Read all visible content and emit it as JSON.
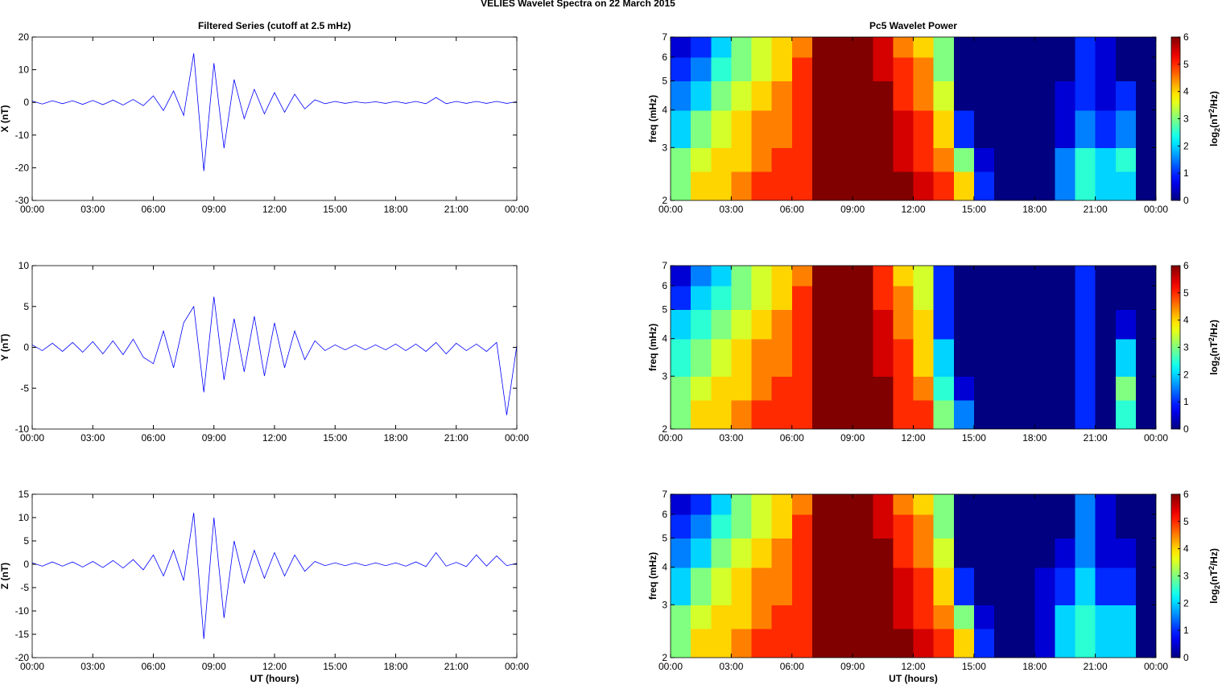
{
  "title": "VELIES Wavelet Spectra on 22 March     2015",
  "chart_data": [
    {
      "type": "line",
      "title": "Filtered Series (cutoff at 2.5 mHz)",
      "ylabel": "X (nT)",
      "color": "#0000ff",
      "grid": false,
      "x": [
        0,
        0.5,
        1,
        1.5,
        2,
        2.5,
        3,
        3.5,
        4,
        4.5,
        5,
        5.5,
        6,
        6.5,
        7,
        7.5,
        8,
        8.5,
        9,
        9.5,
        10,
        10.5,
        11,
        11.5,
        12,
        12.5,
        13,
        13.5,
        14,
        14.5,
        15,
        15.5,
        16,
        16.5,
        17,
        17.5,
        18,
        18.5,
        19,
        19.5,
        20,
        20.5,
        21,
        21.5,
        22,
        22.5,
        23,
        23.5,
        24
      ],
      "values": [
        0.4,
        -0.5,
        0.5,
        -0.4,
        0.5,
        -0.6,
        0.6,
        -0.7,
        0.7,
        -0.8,
        0.9,
        -1,
        2,
        -2.5,
        3.5,
        -4,
        15,
        -21,
        12,
        -14,
        7,
        -5,
        4,
        -3.5,
        3,
        -3,
        2.5,
        -2,
        0.8,
        -0.4,
        0.3,
        -0.3,
        0.2,
        -0.2,
        0.2,
        -0.3,
        0.3,
        -0.3,
        0.3,
        -0.4,
        1.5,
        -0.4,
        0.3,
        -0.3,
        0.3,
        -0.3,
        0.3,
        -0.3,
        0.2
      ],
      "xlim": [
        0,
        24
      ],
      "xticks": [
        {
          "value": 0,
          "label": "00:00"
        },
        {
          "value": 3,
          "label": "03:00"
        },
        {
          "value": 6,
          "label": "06:00"
        },
        {
          "value": 9,
          "label": "09:00"
        },
        {
          "value": 12,
          "label": "12:00"
        },
        {
          "value": 15,
          "label": "15:00"
        },
        {
          "value": 18,
          "label": "18:00"
        },
        {
          "value": 21,
          "label": "21:00"
        },
        {
          "value": 24,
          "label": "00:00"
        }
      ],
      "ylim": [
        -30,
        20
      ],
      "yticks": [
        -30,
        -20,
        -10,
        0,
        10,
        20
      ]
    },
    {
      "type": "line",
      "ylabel": "Y (nT)",
      "color": "#0000ff",
      "grid": false,
      "x": [
        0,
        0.5,
        1,
        1.5,
        2,
        2.5,
        3,
        3.5,
        4,
        4.5,
        5,
        5.5,
        6,
        6.5,
        7,
        7.5,
        8,
        8.5,
        9,
        9.5,
        10,
        10.5,
        11,
        11.5,
        12,
        12.5,
        13,
        13.5,
        14,
        14.5,
        15,
        15.5,
        16,
        16.5,
        17,
        17.5,
        18,
        18.5,
        19,
        19.5,
        20,
        20.5,
        21,
        21.5,
        22,
        22.5,
        23,
        23.5,
        24
      ],
      "values": [
        0.3,
        -0.4,
        0.5,
        -0.5,
        0.6,
        -0.6,
        0.7,
        -0.8,
        0.8,
        -0.9,
        1,
        -1.2,
        -2,
        2,
        -2.5,
        3,
        5,
        -5.5,
        6.2,
        -4,
        3.5,
        -3,
        3.8,
        -3.5,
        3,
        -2.5,
        2,
        -1.5,
        0.8,
        -0.4,
        0.3,
        -0.3,
        0.3,
        -0.3,
        0.3,
        -0.3,
        0.4,
        -0.4,
        0.4,
        -0.5,
        0.6,
        -0.8,
        0.5,
        -0.4,
        0.4,
        -0.5,
        0.6,
        -8.3,
        0.2
      ],
      "xlim": [
        0,
        24
      ],
      "xticks": [
        {
          "value": 0,
          "label": "00:00"
        },
        {
          "value": 3,
          "label": "03:00"
        },
        {
          "value": 6,
          "label": "06:00"
        },
        {
          "value": 9,
          "label": "09:00"
        },
        {
          "value": 12,
          "label": "12:00"
        },
        {
          "value": 15,
          "label": "15:00"
        },
        {
          "value": 18,
          "label": "18:00"
        },
        {
          "value": 21,
          "label": "21:00"
        },
        {
          "value": 24,
          "label": "00:00"
        }
      ],
      "ylim": [
        -10,
        10
      ],
      "yticks": [
        -10,
        -5,
        0,
        5,
        10
      ]
    },
    {
      "type": "line",
      "ylabel": "Z (nT)",
      "xlabel": "UT (hours)",
      "color": "#0000ff",
      "grid": false,
      "x": [
        0,
        0.5,
        1,
        1.5,
        2,
        2.5,
        3,
        3.5,
        4,
        4.5,
        5,
        5.5,
        6,
        6.5,
        7,
        7.5,
        8,
        8.5,
        9,
        9.5,
        10,
        10.5,
        11,
        11.5,
        12,
        12.5,
        13,
        13.5,
        14,
        14.5,
        15,
        15.5,
        16,
        16.5,
        17,
        17.5,
        18,
        18.5,
        19,
        19.5,
        20,
        20.5,
        21,
        21.5,
        22,
        22.5,
        23,
        23.5,
        24
      ],
      "values": [
        0.3,
        -0.4,
        0.5,
        -0.4,
        0.5,
        -0.6,
        0.6,
        -0.7,
        0.8,
        -0.8,
        1,
        -1.2,
        2,
        -2.5,
        3,
        -3.5,
        11,
        -16,
        10,
        -11.5,
        5,
        -4,
        3,
        -3,
        2.5,
        -2.5,
        2,
        -1.5,
        0.6,
        -0.3,
        0.3,
        -0.3,
        0.3,
        -0.3,
        0.3,
        -0.3,
        0.3,
        -0.4,
        0.5,
        -0.5,
        2.5,
        -0.4,
        0.4,
        -0.5,
        2,
        -0.4,
        1.8,
        -0.3,
        0.2
      ],
      "xlim": [
        0,
        24
      ],
      "xticks": [
        {
          "value": 0,
          "label": "00:00"
        },
        {
          "value": 3,
          "label": "03:00"
        },
        {
          "value": 6,
          "label": "06:00"
        },
        {
          "value": 9,
          "label": "09:00"
        },
        {
          "value": 12,
          "label": "12:00"
        },
        {
          "value": 15,
          "label": "15:00"
        },
        {
          "value": 18,
          "label": "18:00"
        },
        {
          "value": 21,
          "label": "21:00"
        },
        {
          "value": 24,
          "label": "00:00"
        }
      ],
      "ylim": [
        -20,
        15
      ],
      "yticks": [
        -20,
        -15,
        -10,
        -5,
        0,
        5,
        10,
        15
      ]
    },
    {
      "type": "heatmap",
      "title": "Pc5 Wavelet Power",
      "ylabel": "freq (mHz)",
      "colormap": "jet",
      "ylog": true,
      "x_edges": [
        0,
        1,
        2,
        3,
        4,
        5,
        6,
        7,
        8,
        9,
        10,
        11,
        12,
        13,
        14,
        15,
        16,
        17,
        18,
        19,
        20,
        21,
        22,
        23,
        24
      ],
      "y_edges": [
        2,
        2.5,
        3,
        4,
        5,
        6,
        7
      ],
      "z": [
        [
          3,
          4,
          4,
          4.5,
          5,
          5,
          5,
          6,
          6,
          6,
          6,
          6,
          5.5,
          5,
          4,
          1,
          0,
          0,
          0,
          1.5,
          2.5,
          2,
          2,
          0
        ],
        [
          3,
          3.5,
          4,
          4,
          4.5,
          5,
          5,
          6,
          6,
          6,
          6,
          5.5,
          5,
          4.5,
          3,
          0.5,
          0,
          0,
          0,
          1.5,
          2.5,
          2,
          2.5,
          0
        ],
        [
          2,
          3,
          3.5,
          4,
          4.5,
          4.5,
          5,
          6,
          6,
          6,
          6,
          5.5,
          5,
          4,
          1,
          0,
          0,
          0,
          0,
          0.5,
          1.5,
          1,
          1.5,
          0
        ],
        [
          1.5,
          2,
          3,
          3.5,
          4,
          4.5,
          5,
          6,
          6,
          6,
          6,
          5,
          4.5,
          3.5,
          0,
          0,
          0,
          0,
          0,
          0.5,
          1,
          0.5,
          1,
          0
        ],
        [
          1,
          1.5,
          2.5,
          3,
          3.5,
          4,
          5,
          6,
          6,
          6,
          5.5,
          5,
          4.5,
          3,
          0,
          0,
          0,
          0,
          0,
          0,
          1,
          0.5,
          0,
          0
        ],
        [
          0.5,
          1,
          2,
          3,
          3.5,
          4,
          4.5,
          6,
          6,
          6,
          5.5,
          4.5,
          4,
          3,
          0,
          0,
          0,
          0,
          0,
          0,
          1,
          0.5,
          0,
          0
        ]
      ],
      "xlim": [
        0,
        24
      ],
      "xticks": [
        {
          "value": 0,
          "label": "00:00"
        },
        {
          "value": 3,
          "label": "03:00"
        },
        {
          "value": 6,
          "label": "06:00"
        },
        {
          "value": 9,
          "label": "09:00"
        },
        {
          "value": 12,
          "label": "12:00"
        },
        {
          "value": 15,
          "label": "15:00"
        },
        {
          "value": 18,
          "label": "18:00"
        },
        {
          "value": 21,
          "label": "21:00"
        },
        {
          "value": 24,
          "label": "00:00"
        }
      ],
      "ylim": [
        2,
        7
      ],
      "yticks": [
        2,
        3,
        4,
        5,
        6,
        7
      ],
      "zlim": [
        0,
        6
      ],
      "zticks": [
        0,
        1,
        2,
        3,
        4,
        5,
        6
      ],
      "colorbar_label": [
        "log",
        "2",
        "(nT",
        "2",
        "/Hz)"
      ]
    },
    {
      "type": "heatmap",
      "ylabel": "freq (mHz)",
      "colormap": "jet",
      "ylog": true,
      "x_edges": [
        0,
        1,
        2,
        3,
        4,
        5,
        6,
        7,
        8,
        9,
        10,
        11,
        12,
        13,
        14,
        15,
        16,
        17,
        18,
        19,
        20,
        21,
        22,
        23,
        24
      ],
      "y_edges": [
        2,
        2.5,
        3,
        4,
        5,
        6,
        7
      ],
      "z": [
        [
          3,
          4,
          4,
          4.5,
          5,
          5,
          5,
          6,
          6,
          6,
          6,
          5,
          5,
          3,
          1.5,
          0,
          0,
          0,
          0,
          0,
          1,
          0,
          2.5,
          0
        ],
        [
          3,
          3.5,
          4,
          4,
          4.5,
          5,
          5,
          6,
          6,
          6,
          6,
          5,
          4.5,
          2.5,
          0.5,
          0,
          0,
          0,
          0,
          0,
          1,
          0,
          3,
          0
        ],
        [
          2.5,
          3,
          3.5,
          4,
          4.5,
          4.5,
          5,
          6,
          6,
          6,
          5.5,
          5,
          4,
          2,
          0,
          0,
          0,
          0,
          0,
          0,
          1,
          0,
          2,
          0
        ],
        [
          2,
          2.5,
          3,
          3.5,
          4,
          4.5,
          5,
          6,
          6,
          6,
          5.5,
          4.5,
          4,
          1,
          0,
          0,
          0,
          0,
          0,
          0,
          1,
          0,
          0.5,
          0
        ],
        [
          1,
          2,
          2.5,
          3,
          3.5,
          4,
          5,
          6,
          6,
          6,
          5,
          4.5,
          3.5,
          1,
          0,
          0,
          0,
          0,
          0,
          0,
          1,
          0,
          0,
          0
        ],
        [
          0.5,
          1.5,
          2,
          3,
          3.5,
          4,
          4.5,
          6,
          6,
          6,
          5,
          4,
          3.5,
          1,
          0,
          0,
          0,
          0,
          0,
          0,
          1,
          0,
          0,
          0
        ]
      ],
      "xlim": [
        0,
        24
      ],
      "xticks": [
        {
          "value": 0,
          "label": "00:00"
        },
        {
          "value": 3,
          "label": "03:00"
        },
        {
          "value": 6,
          "label": "06:00"
        },
        {
          "value": 9,
          "label": "09:00"
        },
        {
          "value": 12,
          "label": "12:00"
        },
        {
          "value": 15,
          "label": "15:00"
        },
        {
          "value": 18,
          "label": "18:00"
        },
        {
          "value": 21,
          "label": "21:00"
        },
        {
          "value": 24,
          "label": "00:00"
        }
      ],
      "ylim": [
        2,
        7
      ],
      "yticks": [
        2,
        3,
        4,
        5,
        6,
        7
      ],
      "zlim": [
        0,
        6
      ],
      "zticks": [
        0,
        1,
        2,
        3,
        4,
        5,
        6
      ],
      "colorbar_label": [
        "log",
        "2",
        "(nT",
        "2",
        "/Hz)"
      ]
    },
    {
      "type": "heatmap",
      "ylabel": "freq (mHz)",
      "xlabel": "UT (hours)",
      "colormap": "jet",
      "ylog": true,
      "x_edges": [
        0,
        1,
        2,
        3,
        4,
        5,
        6,
        7,
        8,
        9,
        10,
        11,
        12,
        13,
        14,
        15,
        16,
        17,
        18,
        19,
        20,
        21,
        22,
        23,
        24
      ],
      "y_edges": [
        2,
        2.5,
        3,
        4,
        5,
        6,
        7
      ],
      "z": [
        [
          3,
          4,
          4,
          4.5,
          5,
          5,
          5,
          6,
          6,
          6,
          6,
          6,
          5.5,
          5,
          4,
          1,
          0,
          0,
          0.5,
          2,
          2.5,
          2,
          2,
          0
        ],
        [
          3,
          3.5,
          4,
          4,
          4.5,
          5,
          5,
          6,
          6,
          6,
          6,
          5.5,
          5,
          4.5,
          3,
          0.5,
          0,
          0,
          0.5,
          2,
          2.5,
          2,
          2,
          0
        ],
        [
          2,
          3,
          3.5,
          4,
          4.5,
          4.5,
          5,
          6,
          6,
          6,
          6,
          5.5,
          5,
          4,
          1,
          0,
          0,
          0,
          0.5,
          1,
          2,
          1,
          1,
          0
        ],
        [
          1.5,
          2,
          3,
          3.5,
          4,
          4.5,
          5,
          6,
          6,
          6,
          6,
          5,
          4.5,
          3.5,
          0,
          0,
          0,
          0,
          0,
          0.5,
          1.5,
          0.5,
          0.5,
          0
        ],
        [
          1,
          1.5,
          2.5,
          3,
          3.5,
          4,
          5,
          6,
          6,
          6,
          5.5,
          5,
          4.5,
          3,
          0,
          0,
          0,
          0,
          0,
          0,
          1.5,
          0.5,
          0,
          0
        ],
        [
          0.5,
          1,
          2,
          3,
          3.5,
          4,
          4.5,
          6,
          6,
          6,
          5.5,
          4.5,
          4,
          3,
          0,
          0,
          0,
          0,
          0,
          0,
          1.5,
          0.5,
          0,
          0
        ]
      ],
      "xlim": [
        0,
        24
      ],
      "xticks": [
        {
          "value": 0,
          "label": "00:00"
        },
        {
          "value": 3,
          "label": "03:00"
        },
        {
          "value": 6,
          "label": "06:00"
        },
        {
          "value": 9,
          "label": "09:00"
        },
        {
          "value": 12,
          "label": "12:00"
        },
        {
          "value": 15,
          "label": "15:00"
        },
        {
          "value": 18,
          "label": "18:00"
        },
        {
          "value": 21,
          "label": "21:00"
        },
        {
          "value": 24,
          "label": "00:00"
        }
      ],
      "ylim": [
        2,
        7
      ],
      "yticks": [
        2,
        3,
        4,
        5,
        6,
        7
      ],
      "zlim": [
        0,
        6
      ],
      "zticks": [
        0,
        1,
        2,
        3,
        4,
        5,
        6
      ],
      "colorbar_label": [
        "log",
        "2",
        "(nT",
        "2",
        "/Hz)"
      ]
    }
  ]
}
